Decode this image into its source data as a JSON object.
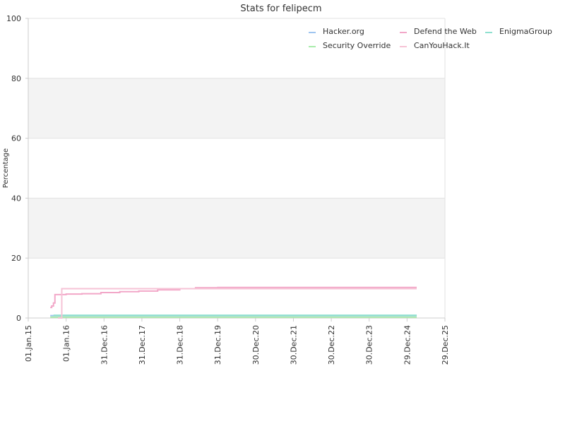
{
  "chart_data": {
    "type": "line",
    "title": "Stats for felipecm",
    "xlabel": "",
    "ylabel": "Percentage",
    "xlim": [
      "2015-01-01",
      "2025-12-29"
    ],
    "ylim": [
      0,
      100
    ],
    "y_ticks": [
      0,
      20,
      40,
      60,
      80,
      100
    ],
    "x_ticks": [
      {
        "date": "2015-01-01",
        "label": "01.Jan.15"
      },
      {
        "date": "2016-01-01",
        "label": "01.Jan.16"
      },
      {
        "date": "2016-12-31",
        "label": "31.Dec.16"
      },
      {
        "date": "2017-12-31",
        "label": "31.Dec.17"
      },
      {
        "date": "2018-12-31",
        "label": "31.Dec.18"
      },
      {
        "date": "2019-12-31",
        "label": "31.Dec.19"
      },
      {
        "date": "2020-12-30",
        "label": "30.Dec.20"
      },
      {
        "date": "2021-12-30",
        "label": "30.Dec.21"
      },
      {
        "date": "2022-12-30",
        "label": "30.Dec.22"
      },
      {
        "date": "2023-12-30",
        "label": "30.Dec.23"
      },
      {
        "date": "2024-12-29",
        "label": "29.Dec.24"
      },
      {
        "date": "2025-12-29",
        "label": "29.Dec.25"
      }
    ],
    "grid": "horizontal bands",
    "legend_position": "top-right",
    "series": [
      {
        "name": "Hacker.org",
        "color": "#9fc5f0",
        "points": [
          [
            "2015-08-01",
            0.8
          ],
          [
            "2025-04-01",
            0.8
          ]
        ]
      },
      {
        "name": "Defend the Web",
        "color": "#f2a7c8",
        "points": [
          [
            "2015-08-01",
            3.5
          ],
          [
            "2015-08-15",
            4.0
          ],
          [
            "2015-09-01",
            5.0
          ],
          [
            "2015-09-15",
            7.8
          ],
          [
            "2015-11-01",
            7.8
          ],
          [
            "2016-01-01",
            8.0
          ],
          [
            "2016-06-01",
            8.1
          ],
          [
            "2016-12-01",
            8.5
          ],
          [
            "2017-06-01",
            8.8
          ],
          [
            "2017-12-01",
            9.0
          ],
          [
            "2018-06-01",
            9.4
          ],
          [
            "2018-12-31",
            9.8
          ],
          [
            "2019-06-01",
            10.1
          ],
          [
            "2020-01-01",
            10.2
          ],
          [
            "2025-04-01",
            10.2
          ]
        ]
      },
      {
        "name": "EnigmaGroup",
        "color": "#8fe0d0",
        "points": [
          [
            "2015-09-01",
            0.9
          ],
          [
            "2025-04-01",
            0.9
          ]
        ]
      },
      {
        "name": "Security Override",
        "color": "#a8ecaa",
        "points": [
          [
            "2015-08-01",
            0.3
          ],
          [
            "2025-04-01",
            0.3
          ]
        ]
      },
      {
        "name": "CanYouHack.It",
        "color": "#f6c3d6",
        "points": [
          [
            "2015-10-15",
            0.0
          ],
          [
            "2015-11-05",
            0.0
          ],
          [
            "2015-11-20",
            9.8
          ],
          [
            "2025-04-01",
            9.8
          ]
        ]
      }
    ]
  }
}
